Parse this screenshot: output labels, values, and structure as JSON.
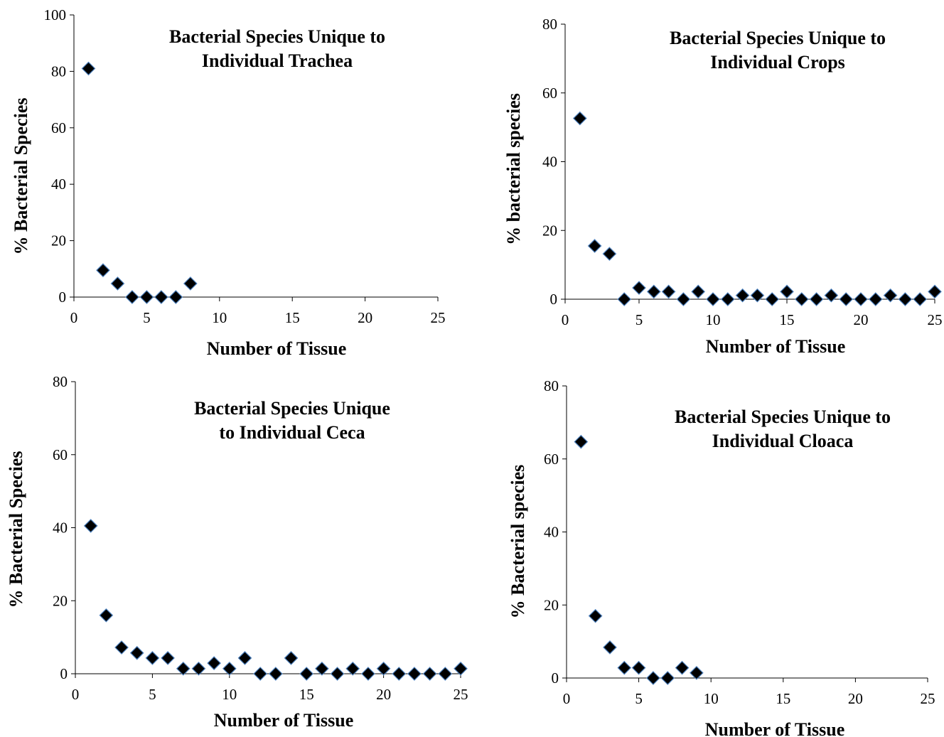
{
  "colors": {
    "marker_fill": "#000000",
    "marker_edge": "#4A7EBB",
    "axis": "#000000"
  },
  "chart_data": [
    {
      "type": "scatter",
      "title": "Bacterial Species Unique to Individual Trachea",
      "title_lines": [
        "Bacterial Species Unique to",
        "Individual Trachea"
      ],
      "xlabel": "Number of Tissue",
      "ylabel": "% Bacterial Species",
      "xlim": [
        0,
        25
      ],
      "ylim": [
        0,
        100
      ],
      "xticks": [
        "0",
        "5",
        "10",
        "15",
        "20",
        "25"
      ],
      "yticks": [
        "0",
        "20",
        "40",
        "60",
        "80",
        "100"
      ],
      "grid": false,
      "legend": "none",
      "x": [
        1,
        2,
        3,
        4,
        5,
        6,
        7,
        8
      ],
      "y": [
        81,
        9.5,
        4.8,
        0,
        0,
        0,
        0,
        4.8
      ]
    },
    {
      "type": "scatter",
      "title": "Bacterial Species Unique to Individual Crops",
      "title_lines": [
        "Bacterial Species Unique to",
        "Individual Crops"
      ],
      "xlabel": "Number of Tissue",
      "ylabel": "% bacterial species",
      "xlim": [
        0,
        25
      ],
      "ylim": [
        0,
        80
      ],
      "xticks": [
        "0",
        "5",
        "10",
        "15",
        "20",
        "25"
      ],
      "yticks": [
        "0",
        "20",
        "40",
        "60",
        "80"
      ],
      "grid": false,
      "legend": "none",
      "x": [
        1,
        2,
        3,
        4,
        5,
        6,
        7,
        8,
        9,
        10,
        11,
        12,
        13,
        14,
        15,
        16,
        17,
        18,
        19,
        20,
        21,
        22,
        23,
        24,
        25
      ],
      "y": [
        52.6,
        15.5,
        13.2,
        0,
        3.3,
        2.2,
        2.2,
        0,
        2.2,
        0,
        0,
        1.1,
        1.1,
        0,
        2.2,
        0,
        0,
        1.1,
        0,
        0,
        0,
        1.1,
        0,
        0,
        2.2
      ]
    },
    {
      "type": "scatter",
      "title": "Bacterial Species Unique to Individual Ceca",
      "title_lines": [
        "Bacterial Species Unique",
        "to Individual Ceca"
      ],
      "xlabel": "Number of Tissue",
      "ylabel": "% Bacterial Species",
      "xlim": [
        0,
        25
      ],
      "ylim": [
        0,
        80
      ],
      "xticks": [
        "0",
        "5",
        "10",
        "15",
        "20",
        "25"
      ],
      "yticks": [
        "0",
        "20",
        "40",
        "60",
        "80"
      ],
      "grid": false,
      "legend": "none",
      "x": [
        1,
        2,
        3,
        4,
        5,
        6,
        7,
        8,
        9,
        10,
        11,
        12,
        13,
        14,
        15,
        16,
        17,
        18,
        19,
        20,
        21,
        22,
        23,
        24,
        25
      ],
      "y": [
        40.5,
        16,
        7.2,
        5.7,
        4.3,
        4.3,
        1.4,
        1.4,
        2.9,
        1.4,
        4.3,
        0,
        0,
        4.3,
        0,
        1.4,
        0,
        1.4,
        0,
        1.4,
        0,
        0,
        0,
        0,
        1.4
      ]
    },
    {
      "type": "scatter",
      "title": "Bacterial Species Unique to Individual Cloaca",
      "title_lines": [
        "Bacterial Species Unique to",
        "Individual Cloaca"
      ],
      "xlabel": "Number of Tissue",
      "ylabel": "% Bacterial species",
      "xlim": [
        0,
        25
      ],
      "ylim": [
        0,
        80
      ],
      "xticks": [
        "0",
        "5",
        "10",
        "15",
        "20",
        "25"
      ],
      "yticks": [
        "0",
        "20",
        "40",
        "60",
        "80"
      ],
      "grid": false,
      "legend": "none",
      "x": [
        1,
        2,
        3,
        4,
        5,
        6,
        7,
        8,
        9
      ],
      "y": [
        64.7,
        17,
        8.4,
        2.8,
        2.8,
        0,
        0,
        2.8,
        1.4
      ]
    }
  ]
}
